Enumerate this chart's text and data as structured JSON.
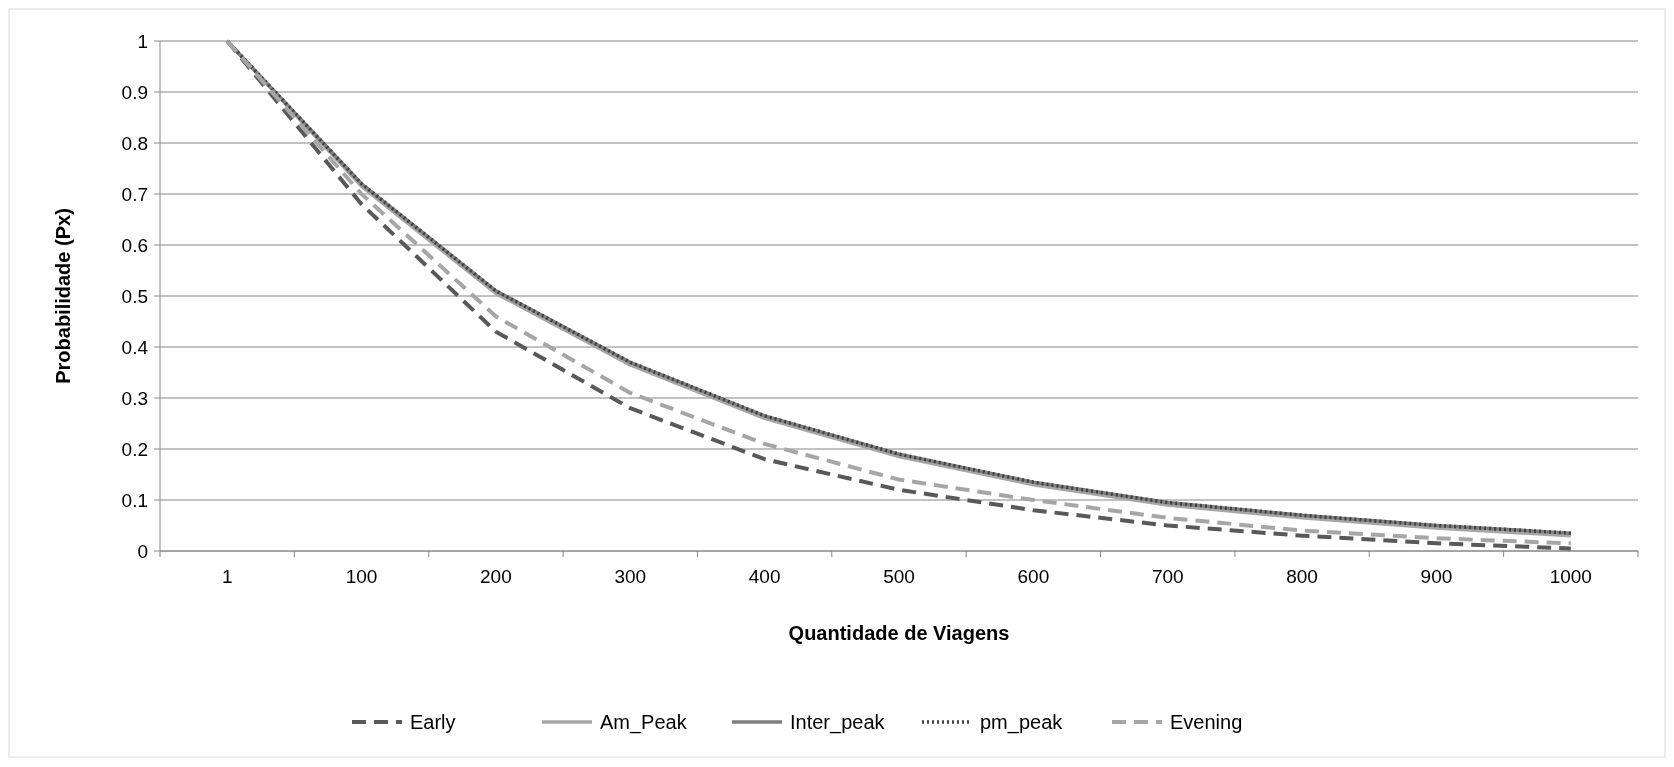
{
  "chart_data": {
    "type": "line",
    "xlabel": "Quantidade  de Viagens",
    "ylabel": "Probabilidade  (Px)",
    "categories": [
      "1",
      "100",
      "200",
      "300",
      "400",
      "500",
      "600",
      "700",
      "800",
      "900",
      "1000"
    ],
    "ylim": [
      0,
      1
    ],
    "yticks": [
      0,
      0.1,
      0.2,
      0.3,
      0.4,
      0.5,
      0.6,
      0.7,
      0.8,
      0.9,
      1
    ],
    "grid": "y",
    "legend": "bottom",
    "series": [
      {
        "name": "Early",
        "color": "#595959",
        "line_style": "dashed",
        "values": [
          1,
          0.68,
          0.43,
          0.28,
          0.18,
          0.12,
          0.08,
          0.05,
          0.03,
          0.015,
          0.005
        ]
      },
      {
        "name": "Am_Peak",
        "color": "#a6a6a6",
        "line_style": "solid",
        "values": [
          1,
          0.715,
          0.505,
          0.365,
          0.26,
          0.185,
          0.13,
          0.09,
          0.065,
          0.045,
          0.03
        ]
      },
      {
        "name": "Inter_peak",
        "color": "#7f7f7f",
        "line_style": "solid",
        "values": [
          1,
          0.72,
          0.51,
          0.37,
          0.265,
          0.19,
          0.135,
          0.095,
          0.07,
          0.05,
          0.035
        ]
      },
      {
        "name": "pm_peak",
        "color": "#404040",
        "line_style": "dotted",
        "values": [
          1,
          0.72,
          0.51,
          0.37,
          0.265,
          0.19,
          0.135,
          0.095,
          0.07,
          0.05,
          0.035
        ]
      },
      {
        "name": "Evening",
        "color": "#a6a6a6",
        "line_style": "dashed",
        "values": [
          1,
          0.7,
          0.46,
          0.31,
          0.21,
          0.14,
          0.1,
          0.065,
          0.04,
          0.025,
          0.015
        ]
      }
    ]
  }
}
